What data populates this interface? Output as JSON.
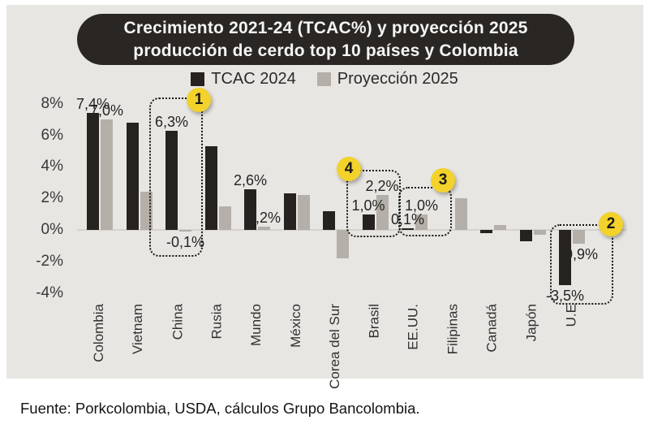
{
  "title": {
    "line1": "Crecimiento 2021-24 (TCAC%) y proyección 2025",
    "line2": "producción de cerdo top 10 países y Colombia"
  },
  "legend": [
    {
      "label": "TCAC 2024",
      "color": "#262220"
    },
    {
      "label": "Proyección 2025",
      "color": "#b4afa8"
    }
  ],
  "footer": {
    "source": "Fuente: Porkcolombia, USDA, cálculos Grupo Bancolombia."
  },
  "colors": {
    "panel_background": "#e8e6e3",
    "title_box": "#2a2624",
    "title_text": "#f6f5f3",
    "bar_tcac": "#262220",
    "bar_proyeccion": "#b4afa8",
    "badge_yellow": "#f2d22b",
    "highlight_border": "#171512"
  },
  "chart_data": {
    "type": "bar",
    "title": "Crecimiento 2021-24 (TCAC%) y proyección 2025 producción de cerdo top 10 países y Colombia",
    "categories": [
      "Colombia",
      "Vietnam",
      "China",
      "Rusia",
      "Mundo",
      "México",
      "Corea del Sur",
      "Brasil",
      "EE.UU.",
      "Filipinas",
      "Canadá",
      "Japón",
      "U.E"
    ],
    "series": [
      {
        "name": "TCAC 2024",
        "color": "#262220",
        "values": [
          7.4,
          6.8,
          6.3,
          5.3,
          2.6,
          2.3,
          1.2,
          1.0,
          0.1,
          0.0,
          -0.2,
          -0.7,
          -3.5
        ]
      },
      {
        "name": "Proyección 2025",
        "color": "#b4afa8",
        "values": [
          7.0,
          2.4,
          -0.1,
          1.5,
          0.2,
          2.2,
          -1.8,
          2.2,
          1.0,
          2.0,
          0.3,
          -0.3,
          -0.9
        ]
      }
    ],
    "data_labels": [
      {
        "category": "Colombia",
        "series": 0,
        "text": "7,4%"
      },
      {
        "category": "Colombia",
        "series": 1,
        "text": "7,0%"
      },
      {
        "category": "China",
        "series": 0,
        "text": "6,3%"
      },
      {
        "category": "China",
        "series": 1,
        "text": "-0,1%"
      },
      {
        "category": "Mundo",
        "series": 0,
        "text": "2,6%"
      },
      {
        "category": "Mundo",
        "series": 1,
        "text": "0,2%"
      },
      {
        "category": "Brasil",
        "series": 0,
        "text": "1,0%"
      },
      {
        "category": "Brasil",
        "series": 1,
        "text": "2,2%"
      },
      {
        "category": "EE.UU.",
        "series": 0,
        "text": "0,1%"
      },
      {
        "category": "EE.UU.",
        "series": 1,
        "text": "1,0%"
      },
      {
        "category": "U.E",
        "series": 0,
        "text": "-3,5%"
      },
      {
        "category": "U.E",
        "series": 1,
        "text": "-0,9%"
      }
    ],
    "y_ticks": [
      {
        "label": "8%",
        "value": 8
      },
      {
        "label": "6%",
        "value": 6
      },
      {
        "label": "4%",
        "value": 4
      },
      {
        "label": "2%",
        "value": 2
      },
      {
        "label": "0%",
        "value": 0
      },
      {
        "label": "-2%",
        "value": -2
      },
      {
        "label": "-4%",
        "value": -4
      }
    ],
    "ylim": [
      -4,
      8
    ],
    "grid": false,
    "legend_position": "top",
    "highlights": [
      {
        "badge": "1",
        "category": "China"
      },
      {
        "badge": "2",
        "category": "U.E"
      },
      {
        "badge": "3",
        "category": "EE.UU."
      },
      {
        "badge": "4",
        "category": "Brasil"
      }
    ]
  }
}
